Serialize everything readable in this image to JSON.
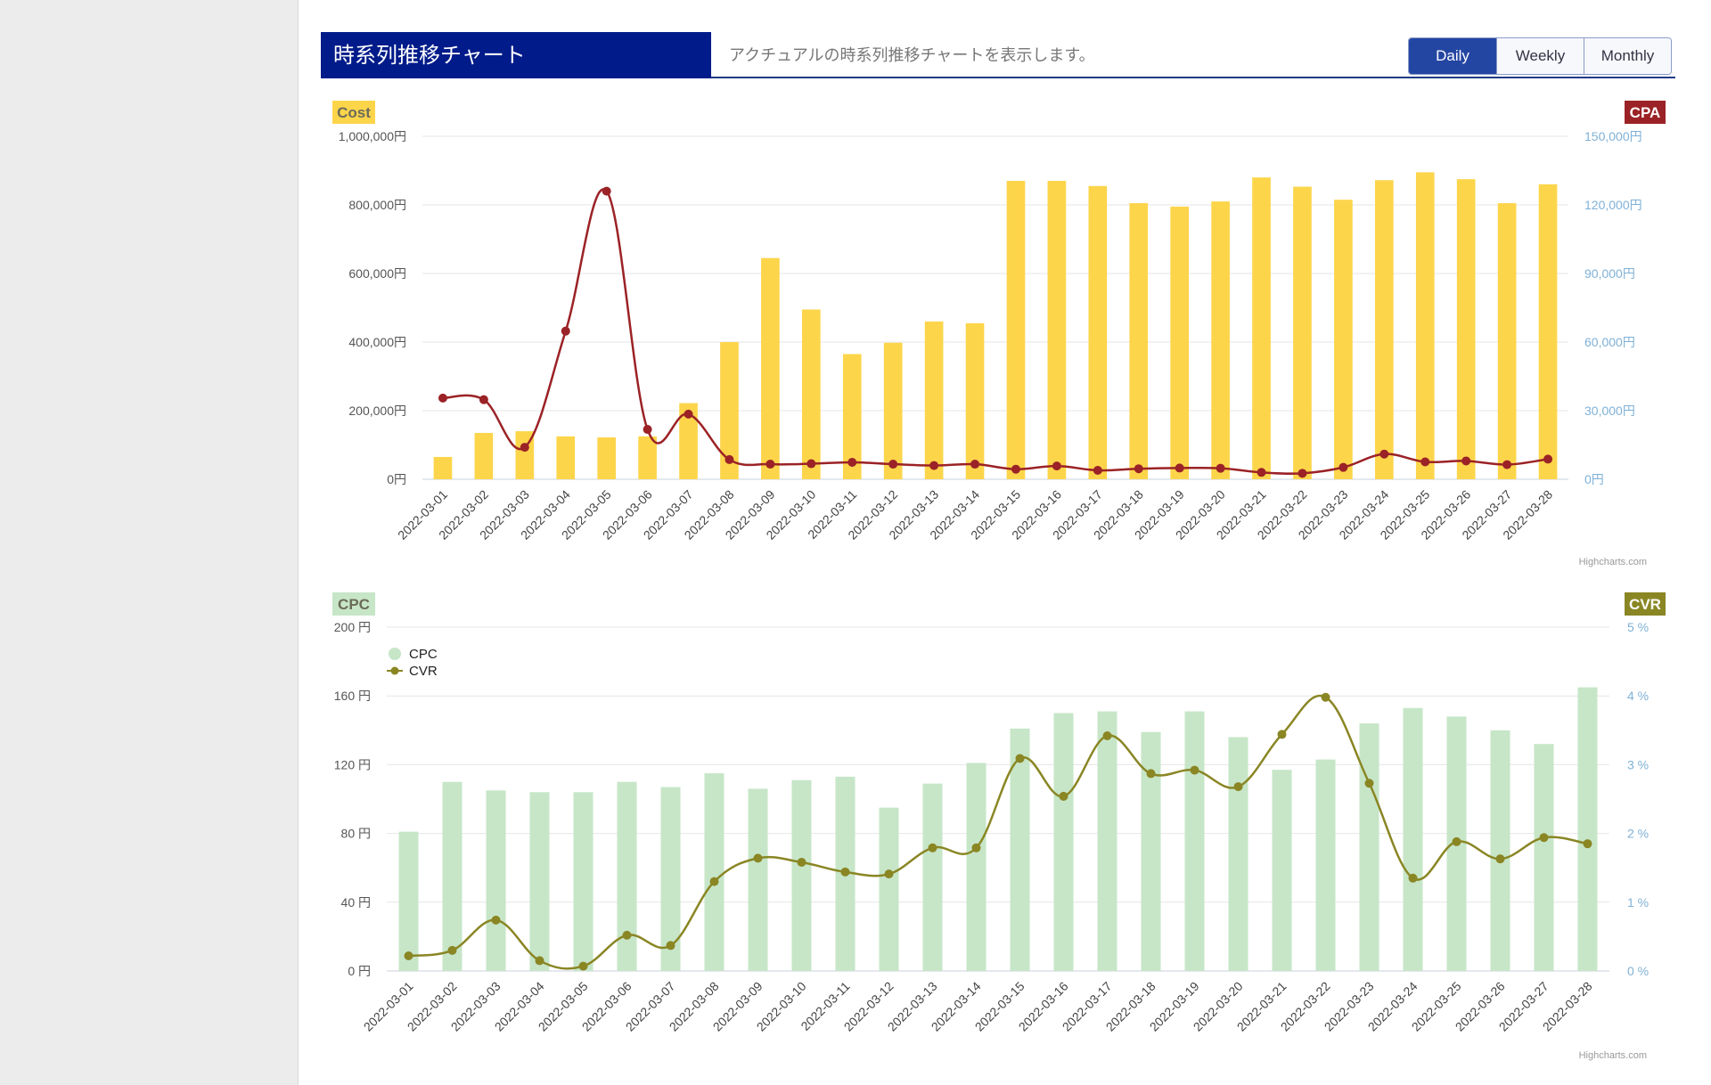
{
  "header": {
    "title": "時系列推移チャート",
    "description": "アクチュアルの時系列推移チャートを表示します。",
    "period_buttons": [
      "Daily",
      "Weekly",
      "Monthly"
    ],
    "active_period": "Daily"
  },
  "chart_data": [
    {
      "type": "bar",
      "badge_left": "Cost",
      "badge_right": "CPA",
      "badge_left_color": "#fdd54b",
      "badge_right_color": "#9b2226",
      "bar_color": "#fdd54b",
      "line_color": "#9b2226",
      "credits": "Highcharts.com",
      "categories": [
        "2022-03-01",
        "2022-03-02",
        "2022-03-03",
        "2022-03-04",
        "2022-03-05",
        "2022-03-06",
        "2022-03-07",
        "2022-03-08",
        "2022-03-09",
        "2022-03-10",
        "2022-03-11",
        "2022-03-12",
        "2022-03-13",
        "2022-03-14",
        "2022-03-15",
        "2022-03-16",
        "2022-03-17",
        "2022-03-18",
        "2022-03-19",
        "2022-03-20",
        "2022-03-21",
        "2022-03-22",
        "2022-03-23",
        "2022-03-24",
        "2022-03-25",
        "2022-03-26",
        "2022-03-27",
        "2022-03-28"
      ],
      "y_left": {
        "min": 0,
        "max": 1000000,
        "ticks": [
          "0円",
          "200,000円",
          "400,000円",
          "600,000円",
          "800,000円",
          "1,000,000円"
        ]
      },
      "y_right": {
        "min": 0,
        "max": 150000,
        "ticks": [
          "0円",
          "30,000円",
          "60,000円",
          "90,000円",
          "120,000円",
          "150,000円"
        ]
      },
      "series": [
        {
          "type": "bar",
          "axis": "left",
          "values": [
            65000,
            135000,
            140000,
            125000,
            122000,
            125000,
            222000,
            400000,
            645000,
            495000,
            365000,
            398000,
            460000,
            455000,
            870000,
            870000,
            855000,
            805000,
            795000,
            810000,
            880000,
            853000,
            815000,
            872000,
            895000,
            875000,
            805000,
            860000
          ]
        },
        {
          "type": "line",
          "axis": "right",
          "values": [
            35500,
            34800,
            14000,
            64800,
            126000,
            21800,
            28500,
            8600,
            6600,
            6800,
            7400,
            6600,
            6000,
            6600,
            4400,
            5800,
            3900,
            4600,
            4900,
            4800,
            3000,
            2600,
            5200,
            11000,
            7600,
            8000,
            6400,
            8800
          ]
        }
      ]
    },
    {
      "type": "bar",
      "badge_left": "CPC",
      "badge_right": "CVR",
      "badge_left_color": "#c7e6c8",
      "badge_right_color": "#8a8624",
      "bar_color": "#c7e6c8",
      "line_color": "#8a8624",
      "credits": "Highcharts.com",
      "legend": [
        "CPC",
        "CVR"
      ],
      "categories": [
        "2022-03-01",
        "2022-03-02",
        "2022-03-03",
        "2022-03-04",
        "2022-03-05",
        "2022-03-06",
        "2022-03-07",
        "2022-03-08",
        "2022-03-09",
        "2022-03-10",
        "2022-03-11",
        "2022-03-12",
        "2022-03-13",
        "2022-03-14",
        "2022-03-15",
        "2022-03-16",
        "2022-03-17",
        "2022-03-18",
        "2022-03-19",
        "2022-03-20",
        "2022-03-21",
        "2022-03-22",
        "2022-03-23",
        "2022-03-24",
        "2022-03-25",
        "2022-03-26",
        "2022-03-27",
        "2022-03-28"
      ],
      "y_left": {
        "min": 0,
        "max": 200,
        "ticks": [
          "0 円",
          "40 円",
          "80 円",
          "120 円",
          "160 円",
          "200 円"
        ]
      },
      "y_right": {
        "min": 0,
        "max": 5,
        "ticks": [
          "0 %",
          "1 %",
          "2 %",
          "3 %",
          "4 %",
          "5 %"
        ]
      },
      "series": [
        {
          "type": "bar",
          "axis": "left",
          "values": [
            81,
            110,
            105,
            104,
            104,
            110,
            107,
            115,
            106,
            111,
            113,
            95,
            109,
            121,
            141,
            150,
            151,
            139,
            151,
            136,
            117,
            123,
            144,
            153,
            148,
            140,
            132,
            165
          ]
        },
        {
          "type": "line",
          "axis": "right",
          "values": [
            0.22,
            0.3,
            0.74,
            0.15,
            0.07,
            0.52,
            0.37,
            1.3,
            1.64,
            1.58,
            1.44,
            1.41,
            1.79,
            1.79,
            3.09,
            2.54,
            3.42,
            2.87,
            2.92,
            2.68,
            3.44,
            3.98,
            2.73,
            1.35,
            1.88,
            1.63,
            1.94,
            1.85
          ]
        }
      ]
    }
  ]
}
